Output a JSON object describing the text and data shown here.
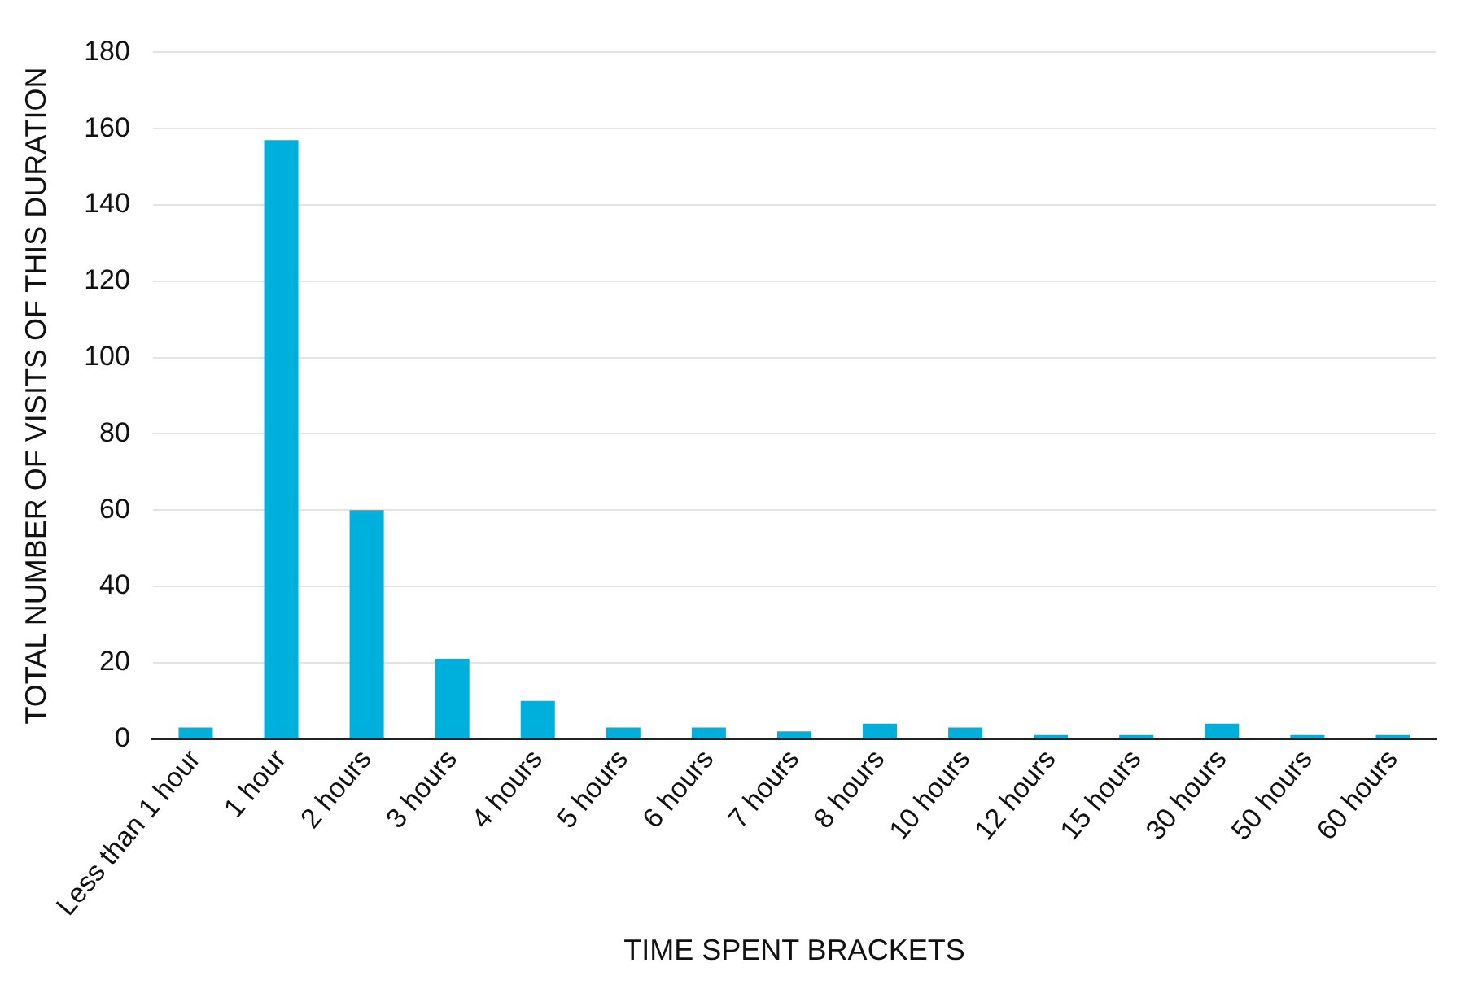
{
  "chart_data": {
    "type": "bar",
    "xlabel": "TIME SPENT BRACKETS",
    "ylabel": "TOTAL NUMBER OF VISITS OF THIS DURATION",
    "categories": [
      "Less than 1 hour",
      "1 hour",
      "2 hours",
      "3 hours",
      "4 hours",
      "5 hours",
      "6 hours",
      "7 hours",
      "8 hours",
      "10 hours",
      "12 hours",
      "15 hours",
      "30 hours",
      "50 hours",
      "60 hours"
    ],
    "values": [
      3,
      157,
      60,
      21,
      10,
      3,
      3,
      2,
      4,
      3,
      1,
      1,
      4,
      1,
      1
    ],
    "color": "#00b0dc",
    "ylim": [
      0,
      180
    ],
    "yticks": [
      0,
      20,
      40,
      60,
      80,
      100,
      120,
      140,
      160,
      180
    ],
    "grid": "y",
    "legend": false
  }
}
